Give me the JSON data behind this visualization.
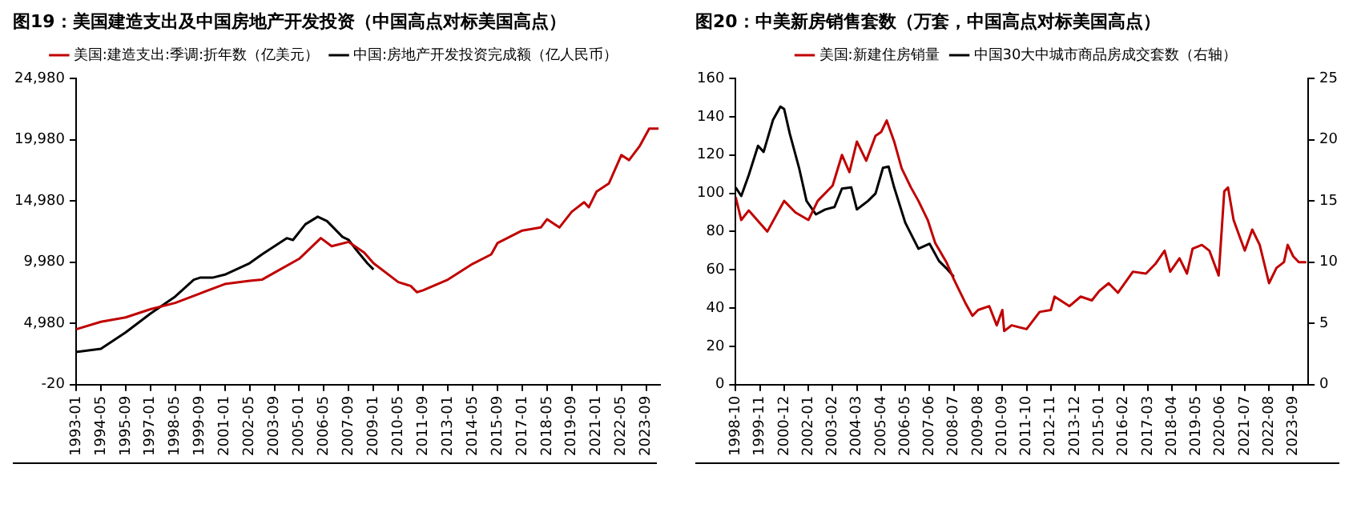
{
  "chart_data": [
    {
      "type": "line",
      "title": "图19：美国建造支出及中国房地产开发投资（中国高点对标美国高点）",
      "legend": "top",
      "xlim": [
        "1993-01",
        "2024-06"
      ],
      "xticks": [
        "1993-01",
        "1994-05",
        "1995-09",
        "1997-01",
        "1998-05",
        "1999-09",
        "2001-01",
        "2002-05",
        "2003-09",
        "2005-01",
        "2006-05",
        "2007-09",
        "2009-01",
        "2010-05",
        "2011-09",
        "2013-01",
        "2014-05",
        "2015-09",
        "2017-01",
        "2018-05",
        "2019-09",
        "2021-01",
        "2022-05",
        "2023-09"
      ],
      "ylim": [
        -20,
        24980
      ],
      "yticks": [
        -20,
        {
          "value": 4980,
          "label": "4,980"
        },
        {
          "value": 9980,
          "label": "9,980"
        },
        {
          "value": 14980,
          "label": "14,980"
        },
        {
          "value": 19980,
          "label": "19,980"
        },
        {
          "value": 24980,
          "label": "24,980"
        }
      ],
      "series": [
        {
          "name": "美国:建造支出:季调:折年数（亿美元）",
          "color": "#c00000",
          "x": [
            "1993-01",
            "1994-05",
            "1995-09",
            "1997-01",
            "1998-05",
            "1999-09",
            "2001-01",
            "2002-05",
            "2003-01",
            "2003-09",
            "2005-01",
            "2006-03",
            "2006-10",
            "2007-09",
            "2008-07",
            "2009-01",
            "2010-05",
            "2011-01",
            "2011-05",
            "2011-09",
            "2013-01",
            "2014-05",
            "2015-05",
            "2015-09",
            "2017-01",
            "2018-01",
            "2018-05",
            "2019-01",
            "2019-09",
            "2020-05",
            "2020-08",
            "2021-01",
            "2021-09",
            "2022-05",
            "2022-10",
            "2023-05",
            "2023-11",
            "2024-05"
          ],
          "values": [
            4500,
            5110,
            5470,
            6140,
            6650,
            7420,
            8190,
            8450,
            8550,
            9120,
            10250,
            11940,
            11280,
            11630,
            10760,
            9890,
            8350,
            8040,
            7530,
            7680,
            8550,
            9840,
            10610,
            11530,
            12560,
            12810,
            13480,
            12810,
            14100,
            14870,
            14460,
            15740,
            16410,
            18720,
            18310,
            19490,
            20880,
            20880
          ]
        },
        {
          "name": "中国:房地产开发投资完成额（亿人民币）",
          "color": "#000000",
          "x": [
            "1993-01",
            "1994-05",
            "1995-01",
            "1995-09",
            "1997-01",
            "1998-05",
            "1999-05",
            "1999-09",
            "2000-05",
            "2001-01",
            "2002-05",
            "2003-01",
            "2004-05",
            "2004-09",
            "2005-05",
            "2006-01",
            "2006-07",
            "2007-05",
            "2007-09",
            "2008-01",
            "2008-09",
            "2009-01"
          ],
          "values": [
            2650,
            2910,
            3570,
            4240,
            5780,
            7170,
            8550,
            8710,
            8710,
            8960,
            9890,
            10610,
            11940,
            11790,
            13070,
            13690,
            13330,
            12040,
            11790,
            11120,
            9890,
            9380
          ]
        }
      ]
    },
    {
      "type": "line",
      "title": "图20：中美新房销售套数（万套，中国高点对标美国高点）",
      "legend": "top",
      "xlim": [
        "1998-10",
        "2024-05"
      ],
      "xticks": [
        "1998-10",
        "1999-11",
        "2000-12",
        "2002-01",
        "2003-02",
        "2004-03",
        "2005-04",
        "2006-05",
        "2007-06",
        "2008-07",
        "2009-08",
        "2010-09",
        "2011-10",
        "2012-11",
        "2013-12",
        "2015-01",
        "2016-02",
        "2017-03",
        "2018-04",
        "2019-05",
        "2020-06",
        "2021-07",
        "2022-08",
        "2023-09"
      ],
      "ylim": [
        0,
        160
      ],
      "yticks": [
        0,
        20,
        40,
        60,
        80,
        100,
        120,
        140,
        160
      ],
      "y2lim": [
        0,
        25
      ],
      "y2ticks": [
        0,
        5,
        10,
        15,
        20,
        25
      ],
      "series": [
        {
          "name": "美国:新建住房销量",
          "color": "#c00000",
          "x": [
            "1998-10",
            "1999-01",
            "1999-05",
            "2000-03",
            "2000-12",
            "2001-06",
            "2002-01",
            "2002-06",
            "2003-02",
            "2003-07",
            "2003-11",
            "2004-03",
            "2004-08",
            "2005-01",
            "2005-04",
            "2005-07",
            "2005-11",
            "2006-03",
            "2006-08",
            "2006-12",
            "2007-05",
            "2007-09",
            "2008-03",
            "2008-07",
            "2009-01",
            "2009-05",
            "2009-08",
            "2010-02",
            "2010-06",
            "2010-09",
            "2010-10",
            "2011-02",
            "2011-10",
            "2012-05",
            "2012-11",
            "2013-01",
            "2013-09",
            "2014-03",
            "2014-09",
            "2015-01",
            "2015-06",
            "2015-11",
            "2016-07",
            "2017-02",
            "2017-07",
            "2017-12",
            "2018-03",
            "2018-08",
            "2018-12",
            "2019-03",
            "2019-08",
            "2019-12",
            "2020-05",
            "2020-08",
            "2020-10",
            "2021-01",
            "2021-04",
            "2021-07",
            "2021-11",
            "2022-03",
            "2022-08",
            "2022-12",
            "2023-04",
            "2023-06",
            "2023-09",
            "2023-12",
            "2024-04"
          ],
          "values": [
            98,
            86,
            91,
            80,
            96,
            90,
            86,
            96,
            104,
            120,
            111,
            127,
            117,
            130,
            132,
            138,
            127,
            113,
            103,
            96,
            86,
            74,
            64,
            55,
            43,
            36,
            39,
            41,
            31,
            39,
            28,
            31,
            29,
            38,
            39,
            46,
            41,
            46,
            44,
            49,
            53,
            48,
            59,
            58,
            63,
            70,
            59,
            66,
            58,
            71,
            73,
            70,
            57,
            101,
            103,
            86,
            78,
            70,
            81,
            73,
            53,
            61,
            64,
            73,
            67,
            64,
            64
          ]
        },
        {
          "name": "中国30大中城市商品房成交套数（右轴）",
          "color": "#000000",
          "axis": "y2",
          "x": [
            "1998-10",
            "1999-01",
            "1999-05",
            "1999-10",
            "2000-01",
            "2000-06",
            "2000-10",
            "2000-12",
            "2001-03",
            "2001-08",
            "2001-12",
            "2002-05",
            "2002-10",
            "2003-03",
            "2003-07",
            "2003-12",
            "2004-03",
            "2004-09",
            "2005-01",
            "2005-05",
            "2005-08",
            "2005-11",
            "2006-05",
            "2006-12",
            "2007-06",
            "2007-11",
            "2008-03",
            "2008-07"
          ],
          "values": [
            16.1,
            15.4,
            17.1,
            19.5,
            19.0,
            21.6,
            22.7,
            22.5,
            20.5,
            17.7,
            15.0,
            13.9,
            14.3,
            14.5,
            16.0,
            16.1,
            14.3,
            15.0,
            15.6,
            17.7,
            17.8,
            16.1,
            13.2,
            11.1,
            11.5,
            10.1,
            9.5,
            8.8
          ]
        }
      ]
    }
  ]
}
